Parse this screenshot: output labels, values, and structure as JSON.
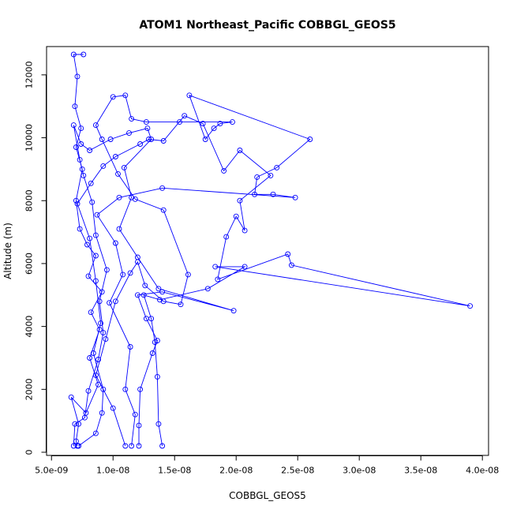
{
  "chart_data": {
    "type": "line",
    "title": "ATOM1 Northeast_Pacific COBBGL_GEOS5",
    "xlabel": "COBBGL_GEOS5",
    "ylabel": "Altitude (m)",
    "xlim": [
      4.6e-09,
      4.05e-08
    ],
    "ylim": [
      -100,
      12900
    ],
    "xticks": [
      5e-09,
      1e-08,
      1.5e-08,
      2e-08,
      2.5e-08,
      3e-08,
      3.5e-08,
      4e-08
    ],
    "xtick_labels": [
      "5.0e-09",
      "1.0e-08",
      "1.5e-08",
      "2.0e-08",
      "2.5e-08",
      "3.0e-08",
      "3.5e-08",
      "4.0e-08"
    ],
    "yticks": [
      0,
      2000,
      4000,
      6000,
      8000,
      10000,
      12000
    ],
    "ytick_labels": [
      "0",
      "2000",
      "4000",
      "6000",
      "8000",
      "10000",
      "12000"
    ],
    "grid": false,
    "legend": "none",
    "marker": "open-circle",
    "color": "#0000ff",
    "series": [
      {
        "points": [
          [
            7.1e-09,
            200
          ],
          [
            7e-09,
            350
          ],
          [
            7.2e-09,
            900
          ],
          [
            6.6e-09,
            1750
          ],
          [
            7.8e-09,
            1250
          ],
          [
            8.8e-09,
            2150
          ],
          [
            8.1e-09,
            3000
          ],
          [
            8.9e-09,
            3900
          ],
          [
            8.2e-09,
            4450
          ],
          [
            9.1e-09,
            5100
          ],
          [
            8e-09,
            5600
          ],
          [
            8.6e-09,
            6250
          ],
          [
            7.9e-09,
            6600
          ],
          [
            7.3e-09,
            7100
          ],
          [
            7e-09,
            8000
          ],
          [
            7.5e-09,
            9000
          ],
          [
            7e-09,
            9700
          ],
          [
            7.4e-09,
            10300
          ],
          [
            6.9e-09,
            11000
          ],
          [
            7.1e-09,
            11950
          ],
          [
            6.8e-09,
            12650
          ],
          [
            7.6e-09,
            12650
          ]
        ]
      },
      {
        "points": [
          [
            1.1e-08,
            200
          ],
          [
            1e-08,
            1400
          ],
          [
            8.6e-09,
            2450
          ],
          [
            9.4e-09,
            3600
          ],
          [
            1.02e-08,
            4800
          ],
          [
            1.14e-08,
            5700
          ],
          [
            1.2e-08,
            6050
          ],
          [
            1.26e-08,
            5300
          ],
          [
            1.41e-08,
            4800
          ],
          [
            1.55e-08,
            4700
          ],
          [
            1.61e-08,
            5650
          ],
          [
            1.41e-08,
            7700
          ],
          [
            1.18e-08,
            8050
          ],
          [
            1.04e-08,
            8850
          ],
          [
            9.1e-09,
            9950
          ],
          [
            8.6e-09,
            10400
          ],
          [
            1e-08,
            11300
          ],
          [
            1.1e-08,
            11350
          ],
          [
            1.15e-08,
            10600
          ],
          [
            1.27e-08,
            10500
          ],
          [
            1.54e-08,
            10500
          ],
          [
            1.97e-08,
            10500
          ],
          [
            1.87e-08,
            10450
          ],
          [
            1.82e-08,
            10300
          ],
          [
            1.75e-08,
            9950
          ],
          [
            1.62e-08,
            11350
          ],
          [
            2.6e-08,
            9950
          ],
          [
            2.33e-08,
            9050
          ],
          [
            2.17e-08,
            8750
          ],
          [
            2.15e-08,
            8200
          ],
          [
            2.3e-08,
            8200
          ],
          [
            2.48e-08,
            8100
          ],
          [
            1.4e-08,
            8400
          ],
          [
            1.05e-08,
            8100
          ],
          [
            8.7e-09,
            7550
          ],
          [
            1.02e-08,
            6650
          ],
          [
            1.08e-08,
            5650
          ],
          [
            9.7e-09,
            4750
          ],
          [
            1.14e-08,
            3350
          ],
          [
            1.1e-08,
            2000
          ],
          [
            1.18e-08,
            1200
          ],
          [
            1.15e-08,
            200
          ]
        ]
      },
      {
        "points": [
          [
            1.4e-08,
            200
          ],
          [
            1.37e-08,
            900
          ],
          [
            1.36e-08,
            2400
          ],
          [
            1.34e-08,
            3500
          ],
          [
            1.31e-08,
            4250
          ],
          [
            1.25e-08,
            5000
          ],
          [
            1.38e-08,
            4850
          ],
          [
            1.77e-08,
            5200
          ],
          [
            2.07e-08,
            5900
          ],
          [
            1.83e-08,
            5900
          ],
          [
            3.9e-08,
            4650
          ],
          [
            2.45e-08,
            5950
          ],
          [
            2.42e-08,
            6300
          ],
          [
            1.85e-08,
            5500
          ],
          [
            1.92e-08,
            6850
          ],
          [
            2e-08,
            7500
          ],
          [
            2.07e-08,
            7050
          ],
          [
            2.03e-08,
            8000
          ],
          [
            2.28e-08,
            8800
          ],
          [
            2.03e-08,
            9600
          ],
          [
            1.9e-08,
            8950
          ],
          [
            1.73e-08,
            10450
          ],
          [
            1.58e-08,
            10700
          ],
          [
            1.41e-08,
            9900
          ],
          [
            1.29e-08,
            9950
          ],
          [
            1.22e-08,
            9800
          ],
          [
            1.02e-08,
            9400
          ],
          [
            9.2e-09,
            9100
          ],
          [
            8.2e-09,
            8550
          ],
          [
            7.1e-09,
            7900
          ],
          [
            8.1e-09,
            6800
          ],
          [
            8.6e-09,
            5450
          ],
          [
            9e-09,
            4100
          ],
          [
            8.4e-09,
            3150
          ],
          [
            9.2e-09,
            2000
          ],
          [
            9.1e-09,
            1250
          ],
          [
            8.6e-09,
            600
          ],
          [
            7.2e-09,
            200
          ]
        ]
      },
      {
        "points": [
          [
            1.21e-08,
            200
          ],
          [
            1.21e-08,
            850
          ],
          [
            1.22e-08,
            2000
          ],
          [
            1.32e-08,
            3150
          ],
          [
            1.36e-08,
            3550
          ],
          [
            1.27e-08,
            4250
          ],
          [
            1.2e-08,
            5000
          ],
          [
            1.4e-08,
            5100
          ],
          [
            1.98e-08,
            4500
          ],
          [
            1.37e-08,
            5200
          ],
          [
            1.2e-08,
            6200
          ],
          [
            1.05e-08,
            7100
          ],
          [
            1.15e-08,
            8100
          ],
          [
            1.09e-08,
            9050
          ],
          [
            1.31e-08,
            9950
          ],
          [
            1.28e-08,
            10300
          ],
          [
            1.13e-08,
            10150
          ],
          [
            9.8e-09,
            9950
          ],
          [
            8.1e-09,
            9600
          ],
          [
            7.4e-09,
            9800
          ],
          [
            6.8e-09,
            10400
          ],
          [
            7.3e-09,
            9300
          ],
          [
            7.6e-09,
            8800
          ],
          [
            8.3e-09,
            7950
          ],
          [
            8.6e-09,
            6900
          ],
          [
            9.5e-09,
            5800
          ],
          [
            8.9e-09,
            4800
          ],
          [
            9.2e-09,
            3800
          ],
          [
            8.8e-09,
            2950
          ],
          [
            8e-09,
            1950
          ],
          [
            7.7e-09,
            1100
          ],
          [
            6.9e-09,
            900
          ],
          [
            6.8e-09,
            200
          ]
        ]
      }
    ]
  }
}
